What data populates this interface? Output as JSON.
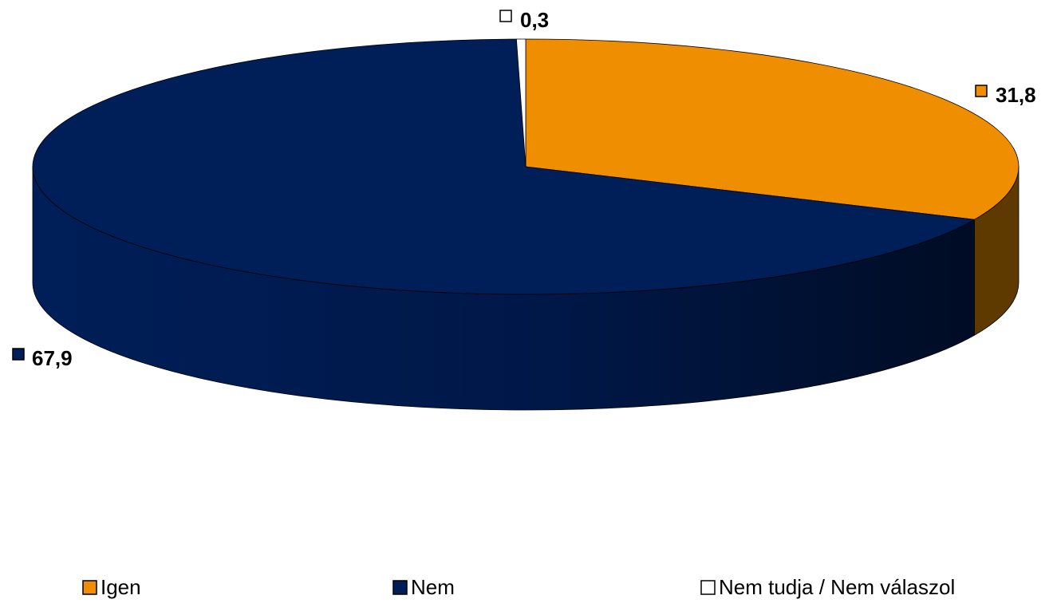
{
  "chart_data": {
    "type": "pie",
    "style": "3d",
    "title": "",
    "legend_position": "bottom",
    "slices": [
      {
        "name": "Igen",
        "value": 31.8,
        "label": "31,8",
        "color": "#EE8E00",
        "side_color": "#5E3A00"
      },
      {
        "name": "Nem",
        "value": 67.9,
        "label": "67,9",
        "color": "#001E58",
        "side_color": "#001035"
      },
      {
        "name": "Nem tudja / Nem válaszol",
        "value": 0.3,
        "label": "0,3",
        "color": "#FFFFFF",
        "side_color": "#D8D8D8"
      }
    ]
  }
}
